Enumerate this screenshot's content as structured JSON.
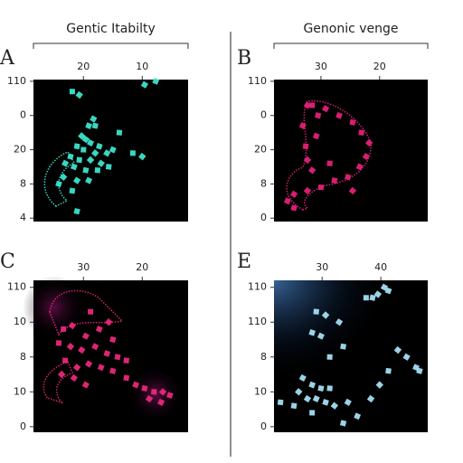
{
  "chart_data": [
    {
      "type": "scatter",
      "label": "A",
      "title": "Gentic Itabilty",
      "color": "#3fe8d0",
      "xlim": [
        28.5,
        2.2
      ],
      "xticks": [
        20,
        10
      ],
      "ylim": [
        -0.1,
        4.05
      ],
      "yticks": [
        {
          "value": 4,
          "label": "110"
        },
        {
          "value": 3,
          "label": "0"
        },
        {
          "value": 2,
          "label": "20"
        },
        {
          "value": 1,
          "label": "8"
        },
        {
          "value": 0,
          "label": "4"
        }
      ],
      "x": [
        21.9,
        20.7,
        18.3,
        19.1,
        18.0,
        13.9,
        20.3,
        19.6,
        18.8,
        17.3,
        21.1,
        20.0,
        18.0,
        16.0,
        15.0,
        22.2,
        20.7,
        18.8,
        17.0,
        23.1,
        21.6,
        19.6,
        17.6,
        23.4,
        21.1,
        19.1,
        24.2,
        21.9,
        11.6,
        10.0,
        9.6,
        7.7,
        21.1,
        15.7
      ],
      "y": [
        3.7,
        3.6,
        2.9,
        2.7,
        2.7,
        2.5,
        2.4,
        2.3,
        2.2,
        2.1,
        2.1,
        2.0,
        1.9,
        1.9,
        2.0,
        1.8,
        1.7,
        1.7,
        1.6,
        1.6,
        1.5,
        1.4,
        1.4,
        1.2,
        1.1,
        1.1,
        1.0,
        0.8,
        1.9,
        1.8,
        3.9,
        4.0,
        0.2,
        1.5
      ]
    },
    {
      "type": "scatter",
      "label": "B",
      "title": "Genonic venge",
      "color": "#e8227a",
      "xlim": [
        38,
        11.8
      ],
      "xticks": [
        30,
        20
      ],
      "ylim": [
        -0.1,
        4.05
      ],
      "yticks": [
        {
          "value": 4,
          "label": "110"
        },
        {
          "value": 3,
          "label": "0"
        },
        {
          "value": 2,
          "label": "20"
        },
        {
          "value": 1,
          "label": "8"
        },
        {
          "value": 0,
          "label": "0"
        }
      ],
      "x": [
        31.5,
        32.3,
        29.2,
        26.9,
        24.6,
        23.1,
        21.8,
        22.3,
        23.4,
        25.4,
        27.7,
        30.0,
        32.3,
        34.6,
        35.7,
        34.6,
        32.6,
        32.3,
        31.5,
        33.1,
        30.8,
        30.5,
        28.5,
        24.6
      ],
      "y": [
        3.3,
        3.3,
        3.2,
        3.0,
        2.8,
        2.5,
        2.2,
        1.8,
        1.5,
        1.2,
        1.1,
        0.9,
        0.8,
        0.7,
        0.5,
        0.3,
        2.1,
        1.7,
        1.4,
        2.7,
        2.4,
        3.0,
        1.6,
        0.8
      ]
    },
    {
      "type": "scatter",
      "label": "C",
      "color": "#f0287e",
      "xlim": [
        38.5,
        12.2
      ],
      "xticks": [
        30,
        20
      ],
      "ylim": [
        -0.16,
        4.2
      ],
      "yticks": [
        {
          "value": 4,
          "label": "110"
        },
        {
          "value": 3,
          "label": "10"
        },
        {
          "value": 2,
          "label": "8"
        },
        {
          "value": 1,
          "label": "10"
        },
        {
          "value": 0,
          "label": "0"
        }
      ],
      "x": [
        33.4,
        31.9,
        29.6,
        27.3,
        25.0,
        34.2,
        32.2,
        30.3,
        28.0,
        26.0,
        24.2,
        33.1,
        31.1,
        29.1,
        27.0,
        25.0,
        22.7,
        33.7,
        31.6,
        29.6,
        21.1,
        19.6,
        18.0,
        16.5,
        18.8,
        16.8,
        15.3,
        22.7,
        28.8,
        25.7
      ],
      "y": [
        2.8,
        2.9,
        2.6,
        2.8,
        2.5,
        2.4,
        2.3,
        2.2,
        2.3,
        2.1,
        2.0,
        1.9,
        1.7,
        1.8,
        1.7,
        1.6,
        1.9,
        1.5,
        1.4,
        1.2,
        1.2,
        1.1,
        1.0,
        1.0,
        0.8,
        0.7,
        0.9,
        1.4,
        3.3,
        3.0
      ]
    },
    {
      "type": "scatter",
      "label": "E",
      "color": "#a8e4f8",
      "xlim": [
        21.8,
        48
      ],
      "xticks": [
        30,
        40
      ],
      "ylim": [
        -0.16,
        4.2
      ],
      "yticks": [
        {
          "value": 4,
          "label": "110"
        },
        {
          "value": 3,
          "label": "110"
        },
        {
          "value": 2,
          "label": "8"
        },
        {
          "value": 1,
          "label": "10"
        },
        {
          "value": 0,
          "label": "0"
        }
      ],
      "x": [
        37.5,
        39.5,
        40.6,
        41.3,
        38.6,
        29.0,
        30.6,
        32.9,
        29.8,
        28.3,
        33.6,
        31.3,
        42.9,
        44.4,
        46.0,
        46.6,
        41.3,
        39.8,
        38.3,
        26.7,
        28.3,
        29.8,
        31.3,
        26.0,
        27.5,
        29.0,
        30.6,
        25.2,
        28.3,
        32.1,
        34.4,
        36.0,
        33.6,
        22.9
      ],
      "y": [
        3.7,
        3.8,
        4.0,
        3.9,
        3.7,
        3.3,
        3.2,
        3.0,
        2.6,
        2.7,
        2.3,
        2.0,
        2.2,
        2.0,
        1.7,
        1.6,
        1.6,
        1.2,
        0.8,
        1.4,
        1.2,
        1.1,
        1.1,
        1.0,
        0.8,
        0.8,
        0.7,
        0.6,
        0.4,
        0.6,
        0.7,
        0.3,
        0.1,
        0.7
      ]
    }
  ]
}
